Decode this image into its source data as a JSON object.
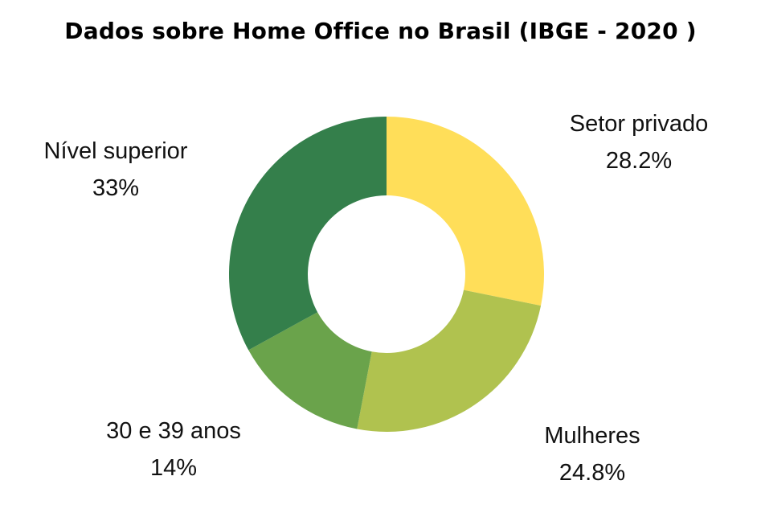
{
  "chart_data": {
    "type": "pie",
    "title": "Dados sobre Home Office no Brasil (IBGE - 2020 )",
    "categories": [
      "Setor privado",
      "Mulheres",
      "30 e 39 anos",
      "Nível superior"
    ],
    "values": [
      28.2,
      24.8,
      14,
      33
    ],
    "value_labels": [
      "28.2%",
      "24.8%",
      "14%",
      "33%"
    ],
    "colors": [
      "#ffde59",
      "#b0c24f",
      "#6aa34b",
      "#347f4b"
    ],
    "donut": true,
    "legend": "none"
  }
}
